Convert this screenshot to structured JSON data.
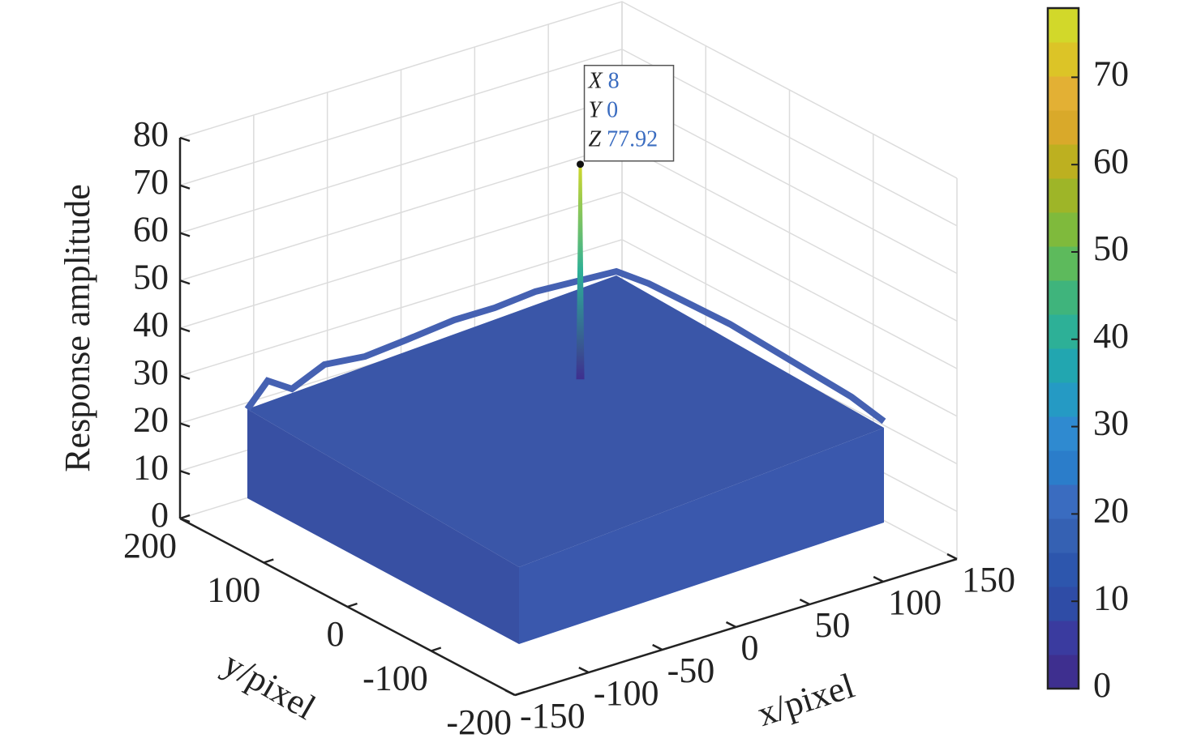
{
  "chart_data": {
    "type": "surface",
    "xlabel": "x/pixel",
    "ylabel": "y/pixel",
    "zlabel": "Response amplitude",
    "xlim": [
      -150,
      150
    ],
    "ylim": [
      -200,
      200
    ],
    "zlim": [
      0,
      80
    ],
    "xticks": [
      -150,
      -100,
      -50,
      0,
      50,
      100,
      150
    ],
    "yticks": [
      -200,
      -100,
      0,
      100,
      200
    ],
    "zticks": [
      0,
      10,
      20,
      30,
      40,
      50,
      60,
      70,
      80
    ],
    "grid": true,
    "peak": {
      "x": 8,
      "y": 0,
      "z": 77.92,
      "x_name": "X",
      "y_name": "Y",
      "z_name": "Z"
    },
    "colorbar": {
      "clim": [
        0,
        77.92
      ],
      "ticks": [
        0,
        10,
        20,
        30,
        40,
        50,
        60,
        70
      ],
      "colormap": [
        "#3e2f8f",
        "#3a3b9f",
        "#2f4ca6",
        "#2d56ad",
        "#3561b3",
        "#3a6cc0",
        "#2b7dca",
        "#2f8ad0",
        "#259ac4",
        "#22a6b0",
        "#2db097",
        "#3fb47c",
        "#5dba5c",
        "#7fba3c",
        "#9eb528",
        "#bdb020",
        "#d9a92a",
        "#e3b034",
        "#dcc427",
        "#d2d82a"
      ]
    }
  }
}
